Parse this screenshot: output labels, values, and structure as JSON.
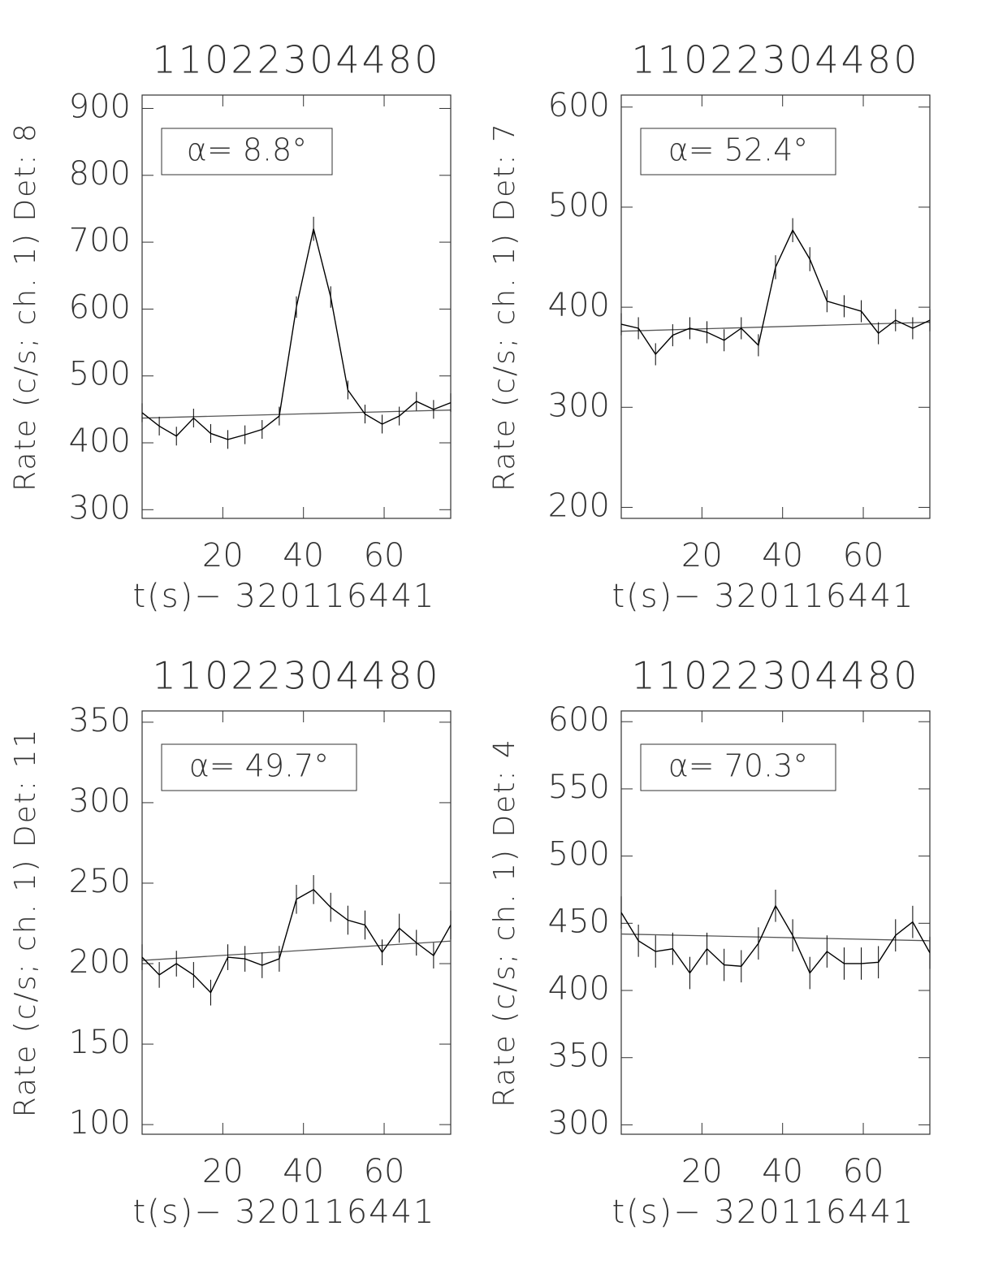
{
  "chart_data": [
    {
      "type": "line",
      "title": "11022304480",
      "ylabel": "Rate (c/s; ch. 1) Det: 8",
      "xlabel": "t(s)− 320116441",
      "annotation": "α= 8.8°",
      "color": "#000000",
      "x": [
        0,
        4.25,
        8.5,
        12.75,
        17,
        21.25,
        25.5,
        29.75,
        34,
        38.25,
        42.5,
        46.75,
        51,
        55.25,
        59.5,
        63.75,
        68,
        72.25,
        76.5
      ],
      "values": [
        445,
        425,
        410,
        437,
        414,
        405,
        412,
        420,
        440,
        603,
        720,
        618,
        479,
        443,
        428,
        440,
        462,
        450,
        460
      ],
      "errors": [
        14,
        14,
        14,
        14,
        14,
        14,
        14,
        14,
        14,
        16,
        18,
        16,
        14,
        14,
        14,
        14,
        14,
        14,
        14
      ],
      "fit": {
        "x": [
          0,
          76.5
        ],
        "values": [
          437,
          449
        ]
      },
      "xlim": [
        0,
        76.5
      ],
      "xticks": [
        20,
        40,
        60
      ],
      "ylim": [
        287,
        920
      ],
      "yticks": [
        300,
        400,
        500,
        600,
        700,
        800,
        900
      ]
    },
    {
      "type": "line",
      "title": "11022304480",
      "ylabel": "Rate (c/s; ch. 1) Det: 7",
      "xlabel": "t(s)− 320116441",
      "annotation": "α= 52.4°",
      "color": "#000000",
      "x": [
        0,
        4.25,
        8.5,
        12.75,
        17,
        21.25,
        25.5,
        29.75,
        34,
        38.25,
        42.5,
        46.75,
        51,
        55.25,
        59.5,
        63.75,
        68,
        72.25,
        76.5
      ],
      "values": [
        383,
        379,
        353,
        372,
        379,
        375,
        367,
        379,
        362,
        440,
        477,
        448,
        406,
        401,
        396,
        374,
        387,
        379,
        387
      ],
      "errors": [
        11,
        11,
        11,
        11,
        11,
        11,
        11,
        11,
        11,
        12,
        12,
        12,
        11,
        11,
        11,
        11,
        11,
        11,
        11
      ],
      "fit": {
        "x": [
          0,
          76.5
        ],
        "values": [
          376,
          385
        ]
      },
      "xlim": [
        0,
        76.5
      ],
      "xticks": [
        20,
        40,
        60
      ],
      "ylim": [
        189,
        612
      ],
      "yticks": [
        200,
        300,
        400,
        500,
        600
      ]
    },
    {
      "type": "line",
      "title": "11022304480",
      "ylabel": "Rate (c/s; ch. 1) Det: 11",
      "xlabel": "t(s)− 320116441",
      "annotation": "α= 49.7°",
      "color": "#000000",
      "x": [
        0,
        4.25,
        8.5,
        12.75,
        17,
        21.25,
        25.5,
        29.75,
        34,
        38.25,
        42.5,
        46.75,
        51,
        55.25,
        59.5,
        63.75,
        68,
        72.25,
        76.5
      ],
      "values": [
        204,
        193,
        200,
        193,
        182,
        204,
        203,
        199,
        203,
        240,
        246,
        235,
        227,
        224,
        207,
        222,
        213,
        205,
        224
      ],
      "errors": [
        8,
        8,
        8,
        8,
        8,
        8,
        8,
        8,
        8,
        9,
        9,
        9,
        9,
        9,
        8,
        9,
        8,
        8,
        9
      ],
      "fit": {
        "x": [
          0,
          76.5
        ],
        "values": [
          202,
          214
        ]
      },
      "xlim": [
        0,
        76.5
      ],
      "xticks": [
        20,
        40,
        60
      ],
      "ylim": [
        94,
        357
      ],
      "yticks": [
        100,
        150,
        200,
        250,
        300,
        350
      ]
    },
    {
      "type": "line",
      "title": "11022304480",
      "ylabel": "Rate (c/s; ch. 1) Det: 4",
      "xlabel": "t(s)− 320116441",
      "annotation": "α= 70.3°",
      "color": "#000000",
      "x": [
        0,
        4.25,
        8.5,
        12.75,
        17,
        21.25,
        25.5,
        29.75,
        34,
        38.25,
        42.5,
        46.75,
        51,
        55.25,
        59.5,
        63.75,
        68,
        72.25,
        76.5
      ],
      "values": [
        458,
        437,
        429,
        431,
        413,
        431,
        419,
        418,
        435,
        463,
        441,
        413,
        429,
        420,
        420,
        421,
        441,
        451,
        428
      ],
      "errors": [
        12,
        12,
        12,
        12,
        12,
        12,
        12,
        12,
        12,
        12,
        12,
        12,
        12,
        12,
        12,
        12,
        12,
        12,
        12
      ],
      "fit": {
        "x": [
          0,
          76.5
        ],
        "values": [
          442,
          437
        ]
      },
      "xlim": [
        0,
        76.5
      ],
      "xticks": [
        20,
        40,
        60
      ],
      "ylim": [
        293,
        608
      ],
      "yticks": [
        300,
        350,
        400,
        450,
        500,
        550,
        600
      ]
    }
  ]
}
